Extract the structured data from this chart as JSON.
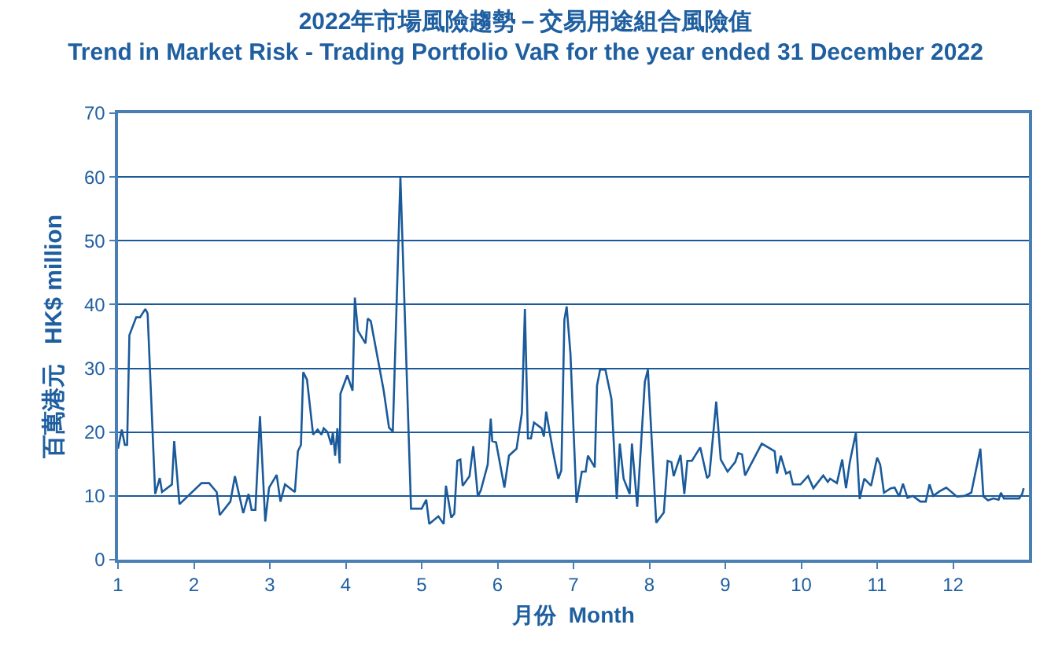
{
  "chart_data": {
    "type": "line",
    "title": "2022年市場風險趨勢－交易用途組合風險值",
    "subtitle": "Trend in Market Risk - Trading Portfolio VaR for the year ended 31 December 2022",
    "xlabel": "月份  Month",
    "ylabel": "百萬港元   HK$ million",
    "xlim": [
      1,
      13
    ],
    "xticks": [
      1,
      2,
      3,
      4,
      5,
      6,
      7,
      8,
      9,
      10,
      11,
      12
    ],
    "ylim": [
      0,
      70
    ],
    "yticks": [
      0,
      10,
      20,
      30,
      40,
      50,
      60,
      70
    ],
    "grid": "y",
    "marker": "none",
    "line_style": "solid",
    "series": [
      {
        "color": "#1a5a9a",
        "x": [
          1.0,
          1.05,
          1.09,
          1.12,
          1.15,
          1.24,
          1.29,
          1.36,
          1.39,
          1.49,
          1.55,
          1.58,
          1.71,
          1.74,
          1.81,
          2.1,
          2.2,
          2.3,
          2.34,
          2.48,
          2.54,
          2.65,
          2.72,
          2.76,
          2.81,
          2.87,
          2.94,
          2.99,
          3.09,
          3.14,
          3.2,
          3.33,
          3.37,
          3.41,
          3.44,
          3.49,
          3.57,
          3.63,
          3.68,
          3.71,
          3.76,
          3.81,
          3.83,
          3.86,
          3.89,
          3.92,
          3.93,
          4.02,
          4.09,
          4.12,
          4.16,
          4.26,
          4.29,
          4.33,
          4.5,
          4.57,
          4.62,
          4.72,
          4.86,
          5.0,
          5.06,
          5.1,
          5.22,
          5.29,
          5.32,
          5.39,
          5.43,
          5.47,
          5.51,
          5.54,
          5.63,
          5.68,
          5.74,
          5.78,
          5.87,
          5.91,
          5.93,
          5.98,
          6.09,
          6.15,
          6.25,
          6.32,
          6.36,
          6.4,
          6.44,
          6.48,
          6.58,
          6.61,
          6.64,
          6.73,
          6.8,
          6.84,
          6.88,
          6.91,
          6.96,
          7.04,
          7.11,
          7.16,
          7.19,
          7.28,
          7.31,
          7.35,
          7.42,
          7.5,
          7.57,
          7.61,
          7.66,
          7.74,
          7.77,
          7.84,
          7.94,
          7.98,
          8.09,
          8.19,
          8.24,
          8.29,
          8.32,
          8.41,
          8.46,
          8.5,
          8.56,
          8.67,
          8.76,
          8.79,
          8.88,
          8.94,
          9.03,
          9.13,
          9.17,
          9.22,
          9.26,
          9.48,
          9.65,
          9.68,
          9.73,
          9.8,
          9.85,
          9.89,
          9.99,
          10.09,
          10.16,
          10.29,
          10.35,
          10.38,
          10.47,
          10.54,
          10.59,
          10.64,
          10.72,
          10.77,
          10.83,
          10.92,
          11.0,
          11.04,
          11.09,
          11.18,
          11.23,
          11.29,
          11.34,
          11.4,
          11.47,
          11.57,
          11.64,
          11.69,
          11.74,
          11.82,
          11.91,
          12.05,
          12.15,
          12.24,
          12.36,
          12.4,
          12.46,
          12.53,
          12.6,
          12.63,
          12.67,
          12.87,
          12.91,
          12.93
        ],
        "values": [
          17.4,
          20.4,
          18,
          18,
          35.2,
          38,
          38,
          39.3,
          38.6,
          10.3,
          12.8,
          10.6,
          11.8,
          18.6,
          8.7,
          12,
          12,
          10.6,
          7,
          9.1,
          13.1,
          7.3,
          10.3,
          7.8,
          7.8,
          22.5,
          6,
          11.3,
          13.3,
          9.1,
          11.8,
          10.6,
          17,
          18,
          29.4,
          28.2,
          19.6,
          20.4,
          19.6,
          20.6,
          20,
          18,
          20,
          16.3,
          20.6,
          15.1,
          26,
          28.9,
          26.5,
          41.1,
          35.9,
          33.9,
          37.8,
          37.4,
          26.5,
          20.7,
          20.1,
          60,
          8,
          8,
          9.4,
          5.6,
          6.8,
          5.6,
          11.6,
          6.6,
          7.2,
          15.5,
          15.7,
          11.6,
          13.1,
          17.8,
          9.9,
          10.9,
          14.9,
          22.1,
          18.6,
          18.4,
          11.3,
          16.3,
          17.4,
          23,
          39.3,
          19,
          19,
          21.5,
          20.6,
          19.3,
          23.2,
          17,
          12.7,
          14,
          37.6,
          39.7,
          32.3,
          8.9,
          13.8,
          13.8,
          16.3,
          14.5,
          27.3,
          29.8,
          29.8,
          25.2,
          9.5,
          18.2,
          12.7,
          10.3,
          18.2,
          8.3,
          27.9,
          29.8,
          5.8,
          7.4,
          15.5,
          15.3,
          13.1,
          16.4,
          10.3,
          15.5,
          15.5,
          17.6,
          12.8,
          13.2,
          24.8,
          15.7,
          13.8,
          15.3,
          16.7,
          16.5,
          13.2,
          18.2,
          17,
          13.5,
          16.3,
          13.5,
          13.8,
          11.8,
          11.8,
          13.1,
          11.2,
          13.2,
          12.2,
          12.7,
          12,
          15.7,
          11.2,
          15.3,
          19.9,
          9.5,
          12.7,
          11.6,
          16,
          14.9,
          10.5,
          11.2,
          11.3,
          9.9,
          11.9,
          9.7,
          10,
          9.1,
          9.1,
          11.8,
          10,
          10.7,
          11.3,
          9.9,
          10,
          10.5,
          17.4,
          9.9,
          9.3,
          9.6,
          9.4,
          10.5,
          9.6,
          9.6,
          10.3,
          11.2
        ]
      }
    ]
  }
}
